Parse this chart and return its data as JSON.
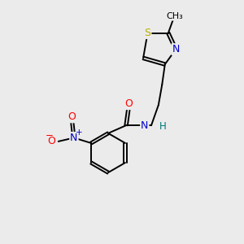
{
  "background_color": "#ebebeb",
  "bond_color": "#000000",
  "atom_colors": {
    "C": "#000000",
    "N": "#0000cc",
    "O": "#ff0000",
    "S": "#bbaa00",
    "H": "#007777"
  },
  "figsize": [
    3.0,
    3.0
  ],
  "dpi": 100,
  "xlim": [
    0,
    10
  ],
  "ylim": [
    0,
    10
  ]
}
